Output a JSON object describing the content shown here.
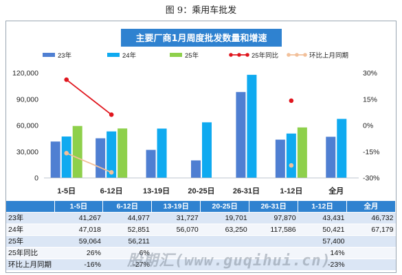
{
  "caption": "图 9：乘用车批发",
  "watermark": "股期汇(www.guqihui.cn)",
  "colors": {
    "title_bg": "#2f82d0",
    "s23": "#4f7fd2",
    "s24": "#0faaf0",
    "s25": "#8ed04b",
    "yoy": "#e0161e",
    "mom": "#f2c09a"
  },
  "chart_data": {
    "type": "bar",
    "title": "主要厂商1月周度批发数量和增速",
    "categories": [
      "1-5日",
      "6-12日",
      "13-19日",
      "20-25日",
      "26-31日",
      "1-12日",
      "全月"
    ],
    "series": [
      {
        "name": "23年",
        "kind": "bar",
        "values": [
          41267,
          44977,
          31727,
          19701,
          97870,
          43431,
          46732
        ]
      },
      {
        "name": "24年",
        "kind": "bar",
        "values": [
          47018,
          52851,
          56070,
          63250,
          117586,
          50421,
          67179
        ]
      },
      {
        "name": "25年",
        "kind": "bar",
        "values": [
          59064,
          56211,
          null,
          null,
          null,
          57400,
          null
        ]
      },
      {
        "name": "25年同比",
        "kind": "line",
        "axis": "right",
        "values": [
          26,
          6,
          null,
          null,
          null,
          14,
          null
        ]
      },
      {
        "name": "环比上月同期",
        "kind": "line",
        "axis": "right",
        "values": [
          -16,
          -27,
          null,
          null,
          null,
          -23,
          null
        ]
      }
    ],
    "y_left": {
      "min": 0,
      "max": 120000,
      "ticks": [
        "0",
        "30,000",
        "60,000",
        "90,000",
        "120,000"
      ]
    },
    "y_right": {
      "min": -30,
      "max": 30,
      "ticks": [
        "-30%",
        "-15%",
        "0%",
        "15%",
        "30%"
      ]
    },
    "legend_position": "top",
    "grid": false
  },
  "table": {
    "header": [
      "",
      "1-5日",
      "6-12日",
      "13-19日",
      "20-25日",
      "26-31日",
      "1-12日",
      "全月"
    ],
    "rows": [
      [
        "23年",
        "41,267",
        "44,977",
        "31,727",
        "19,701",
        "97,870",
        "43,431",
        "46,732"
      ],
      [
        "24年",
        "47,018",
        "52,851",
        "56,070",
        "63,250",
        "117,586",
        "50,421",
        "67,179"
      ],
      [
        "25年",
        "59,064",
        "56,211",
        "",
        "",
        "",
        "57,400",
        ""
      ],
      [
        "25年同比",
        "26%",
        "6%",
        "",
        "",
        "",
        "14%",
        ""
      ],
      [
        "环比上月同期",
        "-16%",
        "-27%",
        "",
        "",
        "",
        "-23%",
        ""
      ]
    ]
  }
}
